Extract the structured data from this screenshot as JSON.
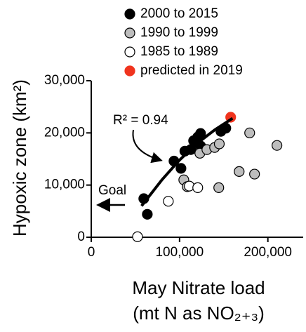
{
  "chart_data": {
    "type": "scatter",
    "ylabel": "Hypoxic zone (km²)",
    "xlabel": [
      "May Nitrate load",
      "(mt N as NO₂₊₃)"
    ],
    "xlim": [
      0,
      240000
    ],
    "ylim": [
      0,
      30000
    ],
    "xticks": [
      0,
      {
        "value": 100000,
        "label": "100,000"
      },
      {
        "value": 200000,
        "label": "200,000"
      }
    ],
    "yticks": [
      0,
      {
        "value": 10000,
        "label": "10,000"
      },
      {
        "value": 20000,
        "label": "20,000"
      },
      {
        "value": 30000,
        "label": "30,000"
      }
    ],
    "series": [
      {
        "name": "2000 to 2015",
        "color": "#000000",
        "x": [
          59500,
          63500,
          93700,
          101600,
          106000,
          112700,
          115900,
          120600,
          123800,
          123800,
          146800,
          152400
        ],
        "values": [
          7400,
          4400,
          14600,
          13200,
          16500,
          16800,
          18500,
          19200,
          19900,
          17500,
          20300,
          20900
        ]
      },
      {
        "name": "1990 to 1999",
        "color": "#bdbdbd",
        "x": [
          104800,
          108700,
          123000,
          131000,
          139700,
          145000,
          144400,
          167500,
          179400,
          184900,
          210300
        ],
        "values": [
          11000,
          9700,
          16100,
          16800,
          17200,
          17900,
          9500,
          12600,
          20000,
          12100,
          17600
        ]
      },
      {
        "name": "1985 to 1989",
        "color": "#ffffff",
        "x": [
          52400,
          87300,
          111000,
          120600
        ],
        "values": [
          100,
          6900,
          9800,
          9500
        ]
      },
      {
        "name": "predicted in 2019",
        "color": "#f0341e",
        "x": [
          157900
        ],
        "values": [
          23000
        ]
      }
    ],
    "curve": {
      "x": [
        57000,
        80000,
        100000,
        120000,
        140000,
        160000
      ],
      "values": [
        6000,
        11000,
        14800,
        18000,
        20600,
        22800
      ]
    },
    "annotations": [
      "R² = 0.94",
      "Goal"
    ]
  }
}
